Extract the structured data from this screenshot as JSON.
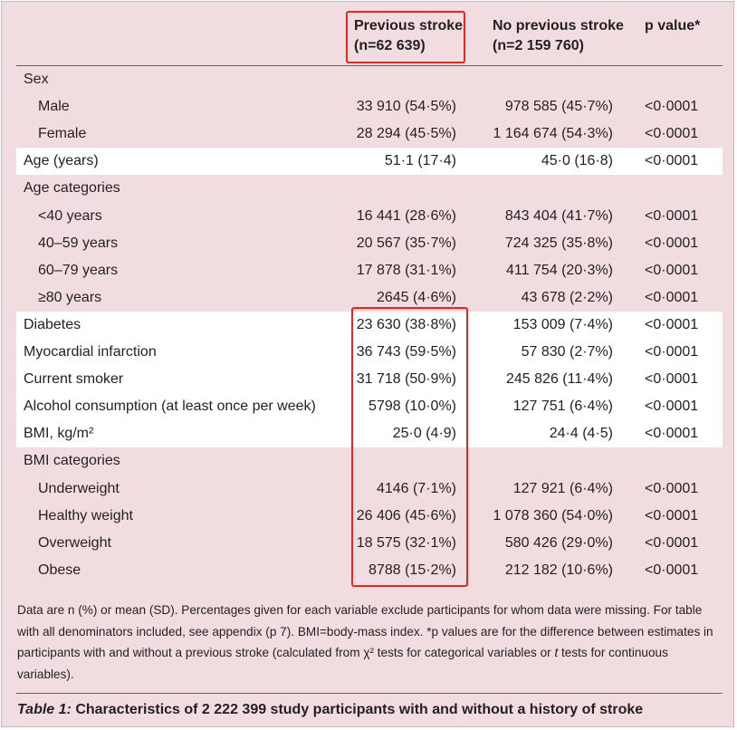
{
  "columns": {
    "previous_stroke": {
      "title": "Previous stroke",
      "n": "(n=62 639)"
    },
    "no_previous_stroke": {
      "title": "No previous stroke",
      "n": "(n=2 159 760)"
    },
    "p_value": {
      "title": "p value*"
    }
  },
  "rows": [
    {
      "label": "Sex",
      "indent": false,
      "shaded": false,
      "prev": "",
      "noprev": "",
      "p": ""
    },
    {
      "label": "Male",
      "indent": true,
      "shaded": false,
      "prev": "33 910 (54·5%)",
      "noprev": "978 585 (45·7%)",
      "p": "<0·0001"
    },
    {
      "label": "Female",
      "indent": true,
      "shaded": false,
      "prev": "28 294 (45·5%)",
      "noprev": "1 164 674 (54·3%)",
      "p": "<0·0001"
    },
    {
      "label": "Age (years)",
      "indent": false,
      "shaded": true,
      "prev": "51·1 (17·4)",
      "noprev": "45·0 (16·8)",
      "p": "<0·0001"
    },
    {
      "label": "Age categories",
      "indent": false,
      "shaded": false,
      "prev": "",
      "noprev": "",
      "p": ""
    },
    {
      "label": "<40 years",
      "indent": true,
      "shaded": false,
      "prev": "16 441 (28·6%)",
      "noprev": "843 404 (41·7%)",
      "p": "<0·0001"
    },
    {
      "label": "40–59 years",
      "indent": true,
      "shaded": false,
      "prev": "20 567 (35·7%)",
      "noprev": "724 325 (35·8%)",
      "p": "<0·0001"
    },
    {
      "label": "60–79 years",
      "indent": true,
      "shaded": false,
      "prev": "17 878 (31·1%)",
      "noprev": "411 754 (20·3%)",
      "p": "<0·0001"
    },
    {
      "label": "≥80 years",
      "indent": true,
      "shaded": false,
      "prev": "2645 (4·6%)",
      "noprev": "43 678 (2·2%)",
      "p": "<0·0001"
    },
    {
      "label": "Diabetes",
      "indent": false,
      "shaded": true,
      "prev": "23 630 (38·8%)",
      "noprev": "153 009 (7·4%)",
      "p": "<0·0001"
    },
    {
      "label": "Myocardial infarction",
      "indent": false,
      "shaded": true,
      "prev": "36 743 (59·5%)",
      "noprev": "57 830 (2·7%)",
      "p": "<0·0001"
    },
    {
      "label": "Current smoker",
      "indent": false,
      "shaded": true,
      "prev": "31 718 (50·9%)",
      "noprev": "245 826 (11·4%)",
      "p": "<0·0001"
    },
    {
      "label": "Alcohol consumption (at least once per week)",
      "indent": false,
      "shaded": true,
      "prev": "5798 (10·0%)",
      "noprev": "127 751 (6·4%)",
      "p": "<0·0001"
    },
    {
      "label": "BMI, kg/m²",
      "indent": false,
      "shaded": true,
      "prev": "25·0 (4·9)",
      "noprev": "24·4 (4·5)",
      "p": "<0·0001"
    },
    {
      "label": "BMI categories",
      "indent": false,
      "shaded": false,
      "prev": "",
      "noprev": "",
      "p": ""
    },
    {
      "label": "Underweight",
      "indent": true,
      "shaded": false,
      "prev": "4146 (7·1%)",
      "noprev": "127 921 (6·4%)",
      "p": "<0·0001"
    },
    {
      "label": "Healthy weight",
      "indent": true,
      "shaded": false,
      "prev": "26 406 (45·6%)",
      "noprev": "1 078 360 (54·0%)",
      "p": "<0·0001"
    },
    {
      "label": "Overweight",
      "indent": true,
      "shaded": false,
      "prev": "18 575 (32·1%)",
      "noprev": "580 426 (29·0%)",
      "p": "<0·0001"
    },
    {
      "label": "Obese",
      "indent": true,
      "shaded": false,
      "prev": "8788 (15·2%)",
      "noprev": "212 182 (10·6%)",
      "p": "<0·0001"
    }
  ],
  "footnote": {
    "part1": "Data are n (%) or mean (SD). Percentages given for each variable exclude participants for whom data were missing. For table with all denominators included, see appendix (p 7). BMI=body-mass index. *p values are for the difference between estimates in participants with and without a previous stroke (calculated from χ² tests for categorical variables or ",
    "t": "t",
    "part2": " tests for continuous variables)."
  },
  "caption": {
    "label": "Table 1:",
    "text": " Characteristics of 2 222 399 study participants with and without a history of stroke"
  },
  "colors": {
    "background": "#f1dde0",
    "shaded_row": "#ffffff",
    "highlight": "#e8251f"
  }
}
